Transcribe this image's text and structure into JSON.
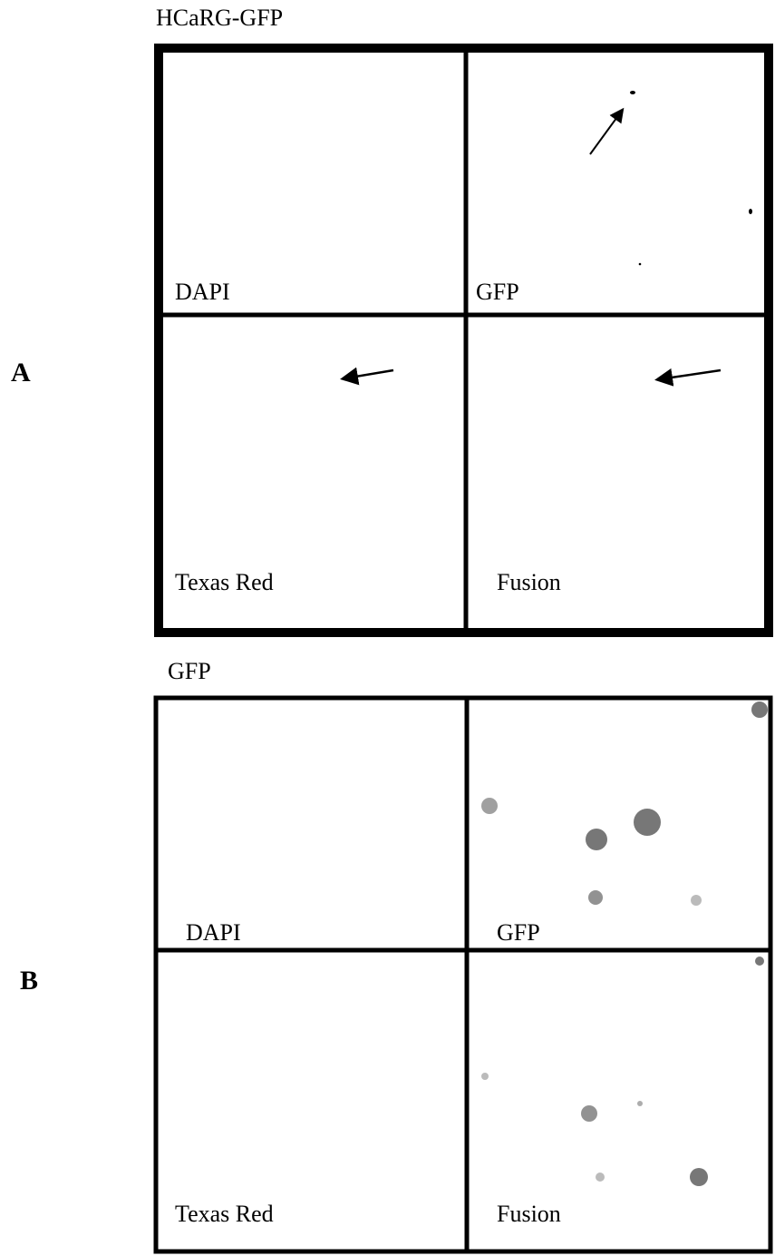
{
  "panels": [
    {
      "label": "A",
      "title": "HCaRG-GFP",
      "cells": [
        "DAPI",
        "GFP",
        "Texas Red",
        "Fusion"
      ]
    },
    {
      "label": "B",
      "title": "GFP",
      "cells": [
        "DAPI",
        "GFP",
        "Texas Red",
        "Fusion"
      ]
    }
  ]
}
